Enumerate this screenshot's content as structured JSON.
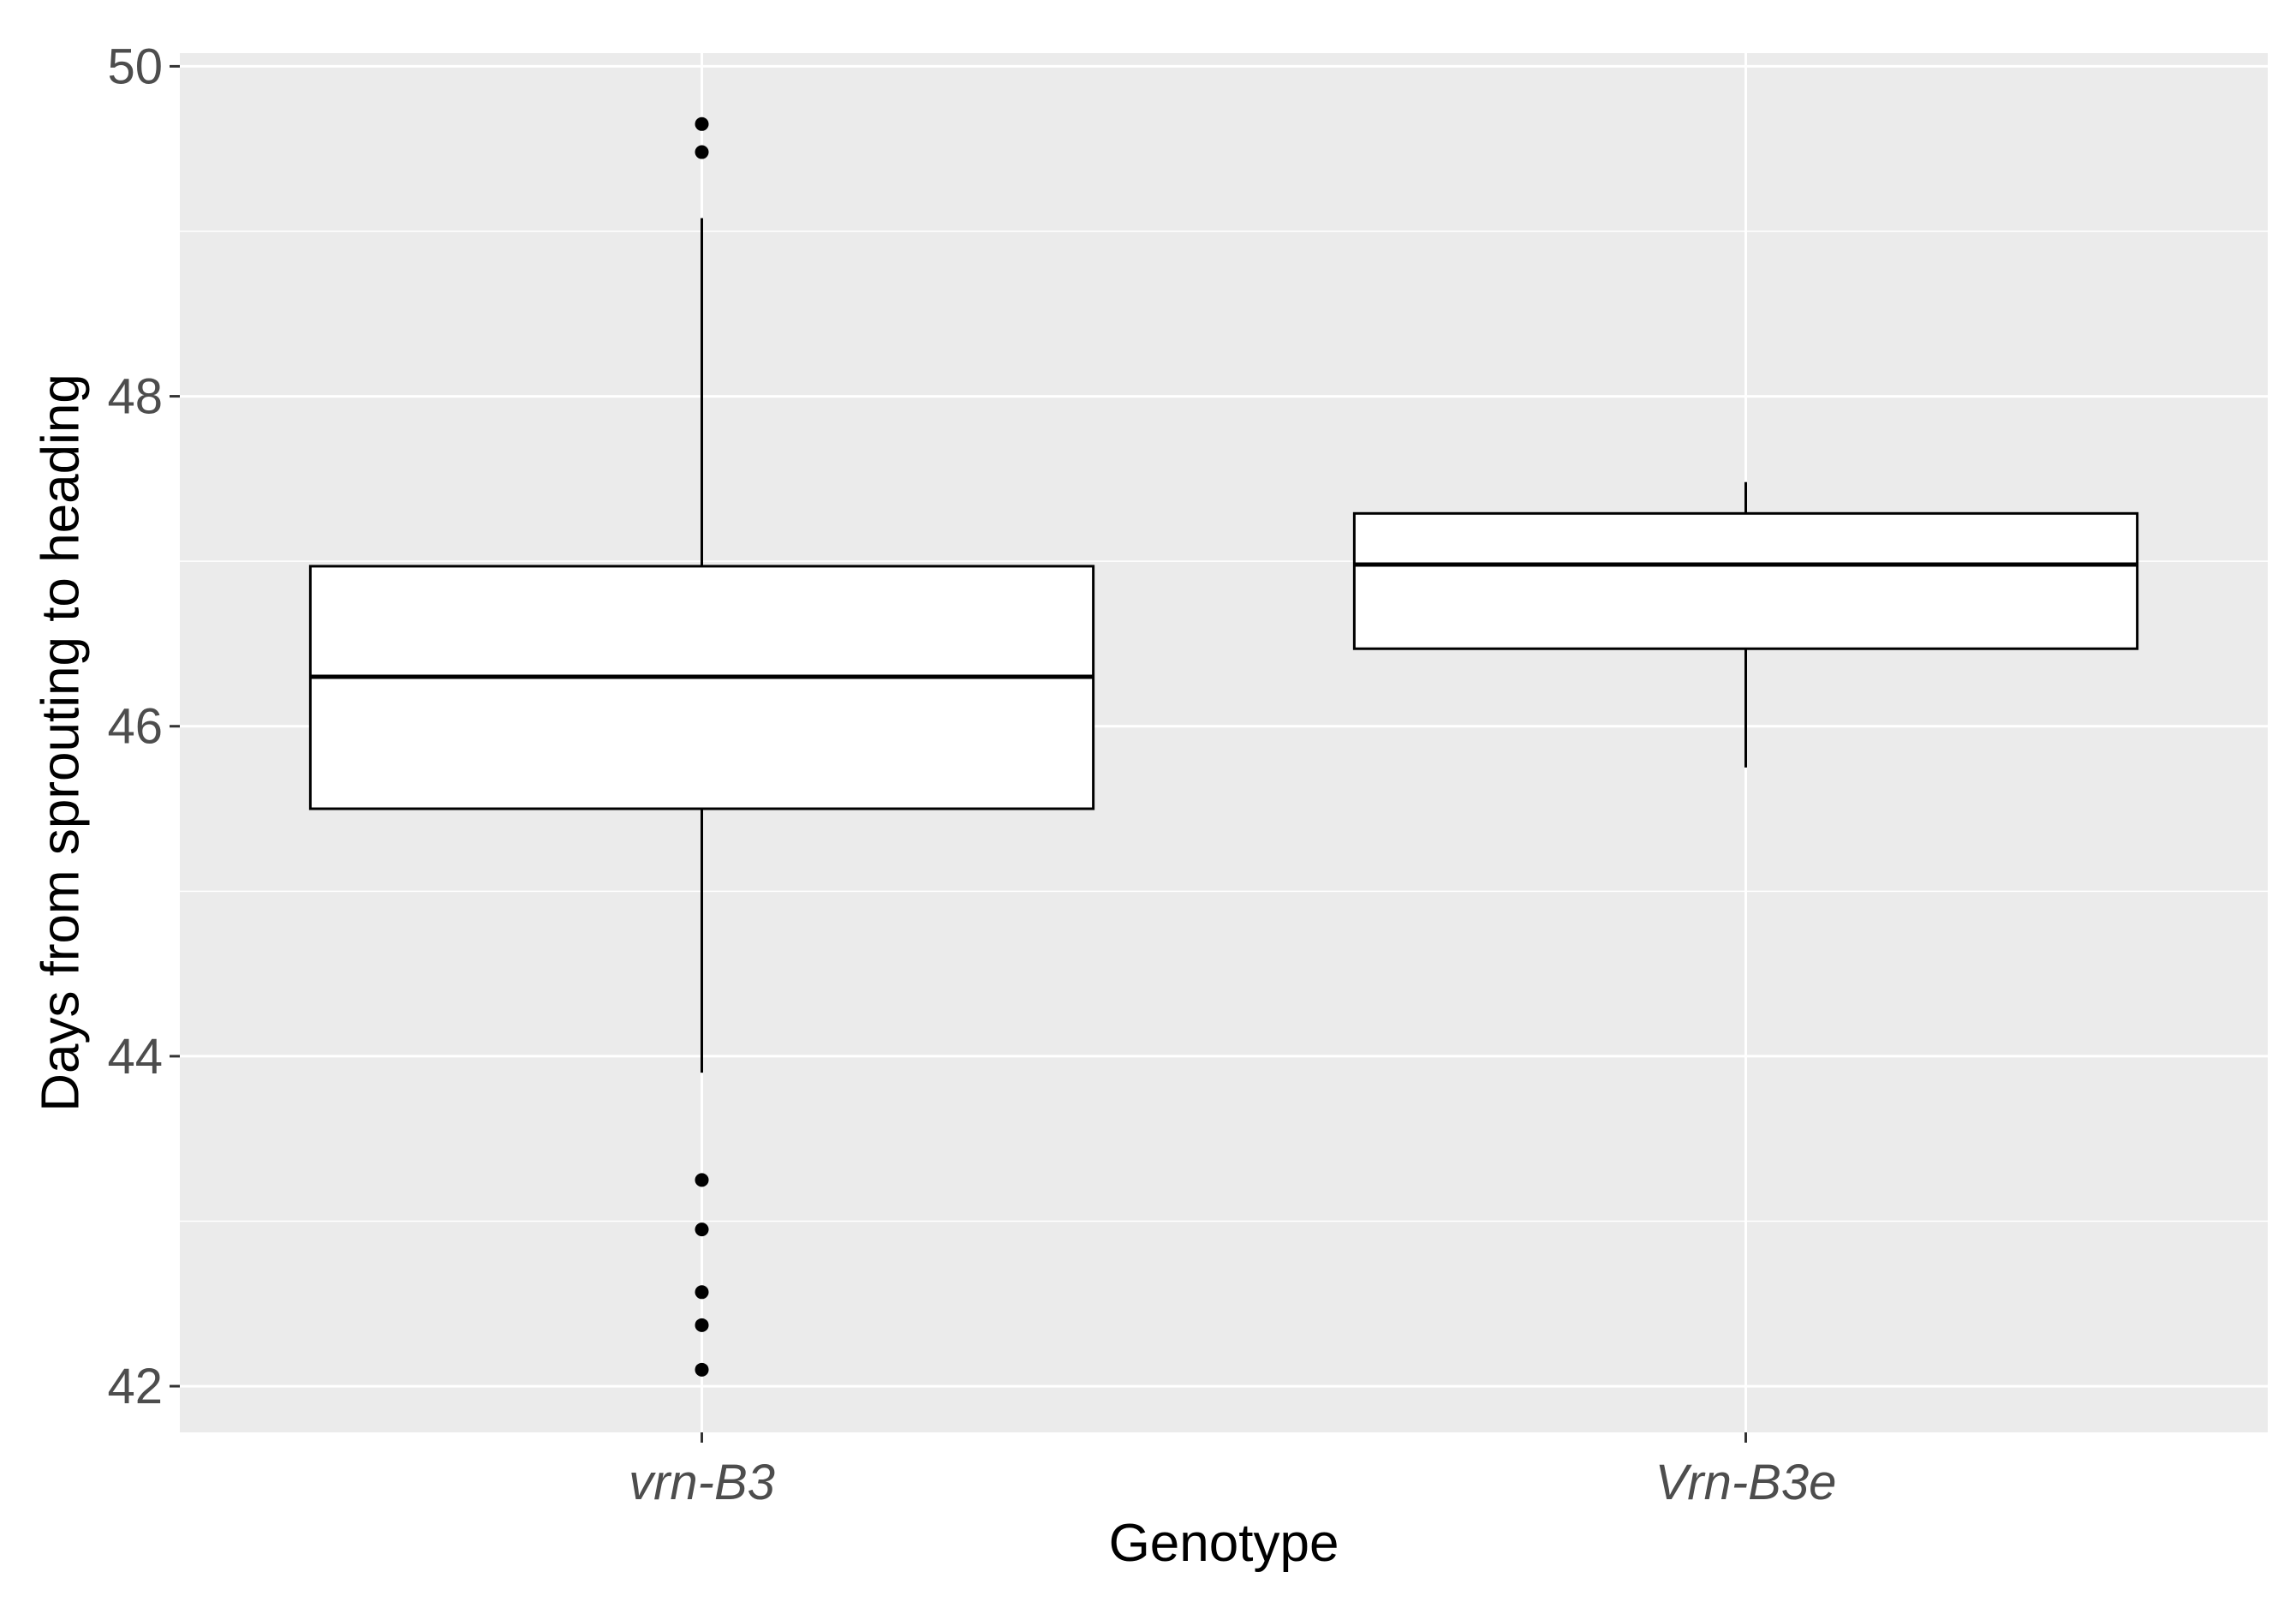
{
  "chart_data": {
    "type": "boxplot",
    "title": "",
    "xlabel": "Genotype",
    "ylabel": "Days from sprouting to heading",
    "ylim": [
      41.72,
      50.08
    ],
    "yticks": [
      42,
      44,
      46,
      48,
      50
    ],
    "grid": true,
    "panel_color": "#ebebeb",
    "categories": [
      "vrn-B3",
      "Vrn-B3e"
    ],
    "boxes": [
      {
        "category": "vrn-B3",
        "whisker_low": 43.9,
        "q1": 45.5,
        "median": 46.3,
        "q3": 46.97,
        "whisker_high": 49.08,
        "outliers": [
          49.65,
          49.48,
          43.25,
          42.95,
          42.57,
          42.37,
          42.1
        ]
      },
      {
        "category": "Vrn-B3e",
        "whisker_low": 45.75,
        "q1": 46.47,
        "median": 46.98,
        "q3": 47.29,
        "whisker_high": 47.48,
        "outliers": []
      }
    ]
  }
}
